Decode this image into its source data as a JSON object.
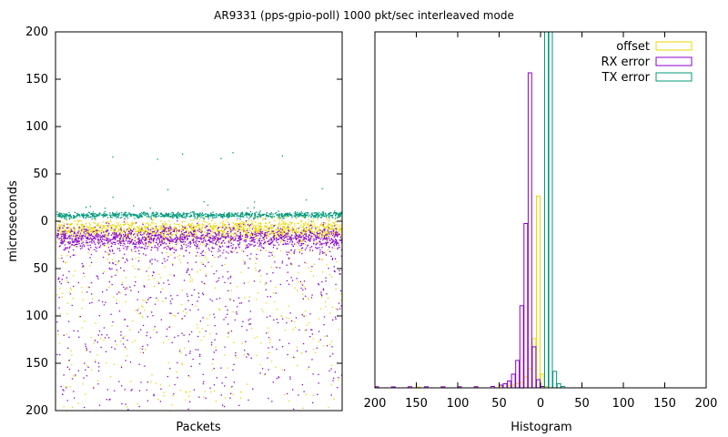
{
  "figure": {
    "title": "AR9331 (pps-gpio-poll) 1000 pkt/sec interleaved mode"
  },
  "colors": {
    "offset": "#e8d800",
    "rx_error": "#8800cc",
    "tx_error": "#00997a",
    "axis": "#000000"
  },
  "chart_data": [
    {
      "type": "scatter",
      "xlabel": "Packets",
      "ylabel": "microseconds",
      "ylim": [
        200,
        -200
      ],
      "ytick_labels": [
        "200",
        "150",
        "100",
        "50",
        "0",
        "50",
        "100",
        "150",
        "200"
      ],
      "series": [
        {
          "name": "offset",
          "color": "#e8d800",
          "band_center": 8,
          "band_spread": 5,
          "tail_to": 200
        },
        {
          "name": "RX error",
          "color": "#8800cc",
          "band_center": 17,
          "band_spread": 6,
          "tail_to": 200
        },
        {
          "name": "TX error",
          "color": "#00997a",
          "band_center": -7,
          "band_spread": 1.5,
          "outliers": [
            -14,
            -15,
            -16,
            -20,
            -22,
            -25,
            -34,
            -66,
            -70,
            -71
          ]
        }
      ]
    },
    {
      "type": "bar",
      "xlabel": "Histogram",
      "xlim": [
        200,
        -200
      ],
      "xtick_labels": [
        "200",
        "150",
        "100",
        "50",
        "0",
        "50",
        "100",
        "150",
        "200"
      ],
      "legend_position": "top-right",
      "series": [
        {
          "name": "offset",
          "color": "#e8d800",
          "bins": [
            [
              -200,
              0.3
            ],
            [
              -150,
              0.25
            ],
            [
              -120,
              0.3
            ],
            [
              -100,
              0.3
            ],
            [
              -80,
              0.4
            ],
            [
              -60,
              0.5
            ],
            [
              -50,
              0.6
            ],
            [
              -40,
              0.8
            ],
            [
              -35,
              1
            ],
            [
              -30,
              1.5
            ],
            [
              -25,
              2
            ],
            [
              -20,
              4
            ],
            [
              -15,
              7
            ],
            [
              -10,
              18
            ],
            [
              -5,
              70
            ],
            [
              0,
              5
            ],
            [
              5,
              0.5
            ]
          ]
        },
        {
          "name": "RX error",
          "color": "#8800cc",
          "bins": [
            [
              -200,
              0.4
            ],
            [
              -180,
              0.35
            ],
            [
              -160,
              0.4
            ],
            [
              -140,
              0.4
            ],
            [
              -120,
              0.4
            ],
            [
              -100,
              0.4
            ],
            [
              -80,
              0.4
            ],
            [
              -60,
              0.5
            ],
            [
              -50,
              1
            ],
            [
              -45,
              1.5
            ],
            [
              -40,
              2.5
            ],
            [
              -35,
              5
            ],
            [
              -30,
              10
            ],
            [
              -25,
              30
            ],
            [
              -20,
              60
            ],
            [
              -15,
              115
            ],
            [
              -10,
              15
            ],
            [
              -5,
              3
            ],
            [
              0,
              0.5
            ]
          ]
        },
        {
          "name": "TX error",
          "color": "#00997a",
          "bins": [
            [
              5,
              400
            ],
            [
              10,
              380
            ],
            [
              15,
              6
            ],
            [
              20,
              1.5
            ],
            [
              25,
              0.5
            ]
          ]
        }
      ]
    }
  ]
}
